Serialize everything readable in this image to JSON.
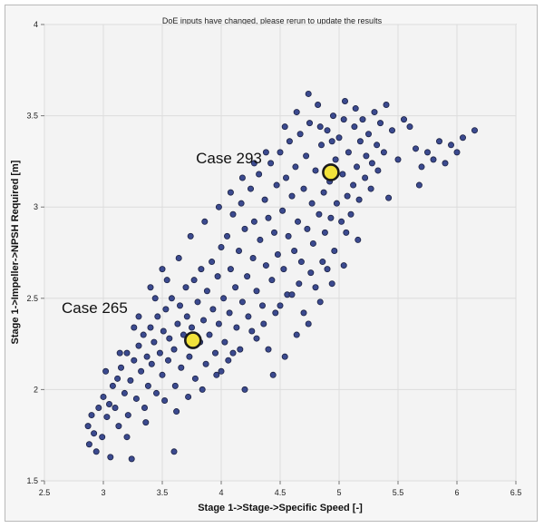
{
  "banner": {
    "message": "DoE inputs have changed, please rerun to update the results"
  },
  "chart_data": {
    "type": "scatter",
    "title": "",
    "xlabel": "Stage 1->Stage->Specific Speed [-]",
    "ylabel": "Stage 1->Impeller->NPSH Required [m]",
    "xlim": [
      2.5,
      6.5
    ],
    "ylim": [
      1.5,
      4
    ],
    "xticks": [
      "2.5",
      "3",
      "3.5",
      "4",
      "4.5",
      "5",
      "5.5",
      "6",
      "6.5"
    ],
    "yticks": [
      "1.5",
      "2",
      "2.5",
      "3",
      "3.5",
      "4"
    ],
    "grid": true,
    "colors": {
      "point": "#3b4a8f",
      "point_stroke": "#1c2244",
      "highlight": "#f2e23a",
      "highlight_stroke": "#1a1a1a"
    },
    "highlights": [
      {
        "label": "Case 293",
        "x": 4.93,
        "y": 3.19
      },
      {
        "label": "Case 265",
        "x": 3.76,
        "y": 2.27
      }
    ],
    "points": [
      [
        2.87,
        1.8
      ],
      [
        2.88,
        1.7
      ],
      [
        2.9,
        1.86
      ],
      [
        2.92,
        1.76
      ],
      [
        2.94,
        1.66
      ],
      [
        2.96,
        1.9
      ],
      [
        2.99,
        1.74
      ],
      [
        3.0,
        1.96
      ],
      [
        3.03,
        1.85
      ],
      [
        3.05,
        1.92
      ],
      [
        3.06,
        1.63
      ],
      [
        3.08,
        2.02
      ],
      [
        3.1,
        1.9
      ],
      [
        3.12,
        2.06
      ],
      [
        3.13,
        1.8
      ],
      [
        3.15,
        2.12
      ],
      [
        3.18,
        1.98
      ],
      [
        3.2,
        2.2
      ],
      [
        3.21,
        1.86
      ],
      [
        3.23,
        2.05
      ],
      [
        3.24,
        1.62
      ],
      [
        3.26,
        2.16
      ],
      [
        3.28,
        1.95
      ],
      [
        3.3,
        2.24
      ],
      [
        3.32,
        2.1
      ],
      [
        3.34,
        2.3
      ],
      [
        3.35,
        1.9
      ],
      [
        3.37,
        2.18
      ],
      [
        3.38,
        2.02
      ],
      [
        3.4,
        2.34
      ],
      [
        3.41,
        2.14
      ],
      [
        3.43,
        2.26
      ],
      [
        3.45,
        1.98
      ],
      [
        3.46,
        2.4
      ],
      [
        3.48,
        2.2
      ],
      [
        3.5,
        2.08
      ],
      [
        3.51,
        2.32
      ],
      [
        3.53,
        2.44
      ],
      [
        3.55,
        2.16
      ],
      [
        3.56,
        2.28
      ],
      [
        3.58,
        2.5
      ],
      [
        3.6,
        2.22
      ],
      [
        3.61,
        2.02
      ],
      [
        3.63,
        2.36
      ],
      [
        3.65,
        2.46
      ],
      [
        3.66,
        2.12
      ],
      [
        3.68,
        2.3
      ],
      [
        3.7,
        2.56
      ],
      [
        3.71,
        2.4
      ],
      [
        3.73,
        2.18
      ],
      [
        3.75,
        2.34
      ],
      [
        3.77,
        2.6
      ],
      [
        3.78,
        2.06
      ],
      [
        3.8,
        2.48
      ],
      [
        3.82,
        2.26
      ],
      [
        3.83,
        2.66
      ],
      [
        3.85,
        2.38
      ],
      [
        3.87,
        2.14
      ],
      [
        3.88,
        2.54
      ],
      [
        3.9,
        2.3
      ],
      [
        3.92,
        2.7
      ],
      [
        3.93,
        2.44
      ],
      [
        3.95,
        2.2
      ],
      [
        3.97,
        2.62
      ],
      [
        3.98,
        2.36
      ],
      [
        4.0,
        2.78
      ],
      [
        4.02,
        2.5
      ],
      [
        4.03,
        2.26
      ],
      [
        4.05,
        2.84
      ],
      [
        4.07,
        2.42
      ],
      [
        4.08,
        2.66
      ],
      [
        4.1,
        2.96
      ],
      [
        4.12,
        2.56
      ],
      [
        4.13,
        2.34
      ],
      [
        4.15,
        2.76
      ],
      [
        4.17,
        3.02
      ],
      [
        4.18,
        2.48
      ],
      [
        4.2,
        2.88
      ],
      [
        4.22,
        2.62
      ],
      [
        4.23,
        2.4
      ],
      [
        4.25,
        3.1
      ],
      [
        4.27,
        2.72
      ],
      [
        4.28,
        2.92
      ],
      [
        4.3,
        2.54
      ],
      [
        4.32,
        3.18
      ],
      [
        4.33,
        2.82
      ],
      [
        4.35,
        2.46
      ],
      [
        4.37,
        3.04
      ],
      [
        4.38,
        2.68
      ],
      [
        4.4,
        2.94
      ],
      [
        4.42,
        3.24
      ],
      [
        4.43,
        2.6
      ],
      [
        4.45,
        2.86
      ],
      [
        4.47,
        3.12
      ],
      [
        4.48,
        2.74
      ],
      [
        4.5,
        3.3
      ],
      [
        4.52,
        2.98
      ],
      [
        4.53,
        2.66
      ],
      [
        4.55,
        3.16
      ],
      [
        4.57,
        2.84
      ],
      [
        4.58,
        3.36
      ],
      [
        4.6,
        3.06
      ],
      [
        4.62,
        2.76
      ],
      [
        4.63,
        3.22
      ],
      [
        4.65,
        2.92
      ],
      [
        4.67,
        3.4
      ],
      [
        4.68,
        2.7
      ],
      [
        4.7,
        3.1
      ],
      [
        4.72,
        3.28
      ],
      [
        4.73,
        2.88
      ],
      [
        4.75,
        3.46
      ],
      [
        4.77,
        3.02
      ],
      [
        4.78,
        2.8
      ],
      [
        4.8,
        3.2
      ],
      [
        4.82,
        3.56
      ],
      [
        4.83,
        2.96
      ],
      [
        4.85,
        3.34
      ],
      [
        4.87,
        3.08
      ],
      [
        4.88,
        2.86
      ],
      [
        4.9,
        3.42
      ],
      [
        4.92,
        3.14
      ],
      [
        4.93,
        2.94
      ],
      [
        4.95,
        3.5
      ],
      [
        4.97,
        3.26
      ],
      [
        4.98,
        3.02
      ],
      [
        5.0,
        3.38
      ],
      [
        5.02,
        2.92
      ],
      [
        5.03,
        3.18
      ],
      [
        5.05,
        3.58
      ],
      [
        5.07,
        3.06
      ],
      [
        5.08,
        3.3
      ],
      [
        5.1,
        2.96
      ],
      [
        5.12,
        3.12
      ],
      [
        5.13,
        3.44
      ],
      [
        5.15,
        3.22
      ],
      [
        5.17,
        3.04
      ],
      [
        5.18,
        3.36
      ],
      [
        5.2,
        3.48
      ],
      [
        5.22,
        3.16
      ],
      [
        5.23,
        3.28
      ],
      [
        5.25,
        3.4
      ],
      [
        5.27,
        3.1
      ],
      [
        5.28,
        3.24
      ],
      [
        5.3,
        3.52
      ],
      [
        5.32,
        3.34
      ],
      [
        5.33,
        3.2
      ],
      [
        5.35,
        3.46
      ],
      [
        5.38,
        3.3
      ],
      [
        5.42,
        3.05
      ],
      [
        5.45,
        3.42
      ],
      [
        5.5,
        3.26
      ],
      [
        5.55,
        3.48
      ],
      [
        5.6,
        3.44
      ],
      [
        5.65,
        3.32
      ],
      [
        5.7,
        3.22
      ],
      [
        5.75,
        3.3
      ],
      [
        5.8,
        3.26
      ],
      [
        5.85,
        3.36
      ],
      [
        5.9,
        3.24
      ],
      [
        5.95,
        3.34
      ],
      [
        6.0,
        3.3
      ],
      [
        6.05,
        3.38
      ],
      [
        6.15,
        3.42
      ],
      [
        5.68,
        3.12
      ],
      [
        5.4,
        3.56
      ],
      [
        3.2,
        1.74
      ],
      [
        3.36,
        1.82
      ],
      [
        3.52,
        1.94
      ],
      [
        3.62,
        1.88
      ],
      [
        3.72,
        1.96
      ],
      [
        3.84,
        2.0
      ],
      [
        3.96,
        2.08
      ],
      [
        4.06,
        2.16
      ],
      [
        4.16,
        2.22
      ],
      [
        4.26,
        2.32
      ],
      [
        4.36,
        2.36
      ],
      [
        4.46,
        2.42
      ],
      [
        4.56,
        2.52
      ],
      [
        4.66,
        2.58
      ],
      [
        4.76,
        2.64
      ],
      [
        4.86,
        2.7
      ],
      [
        4.96,
        2.76
      ],
      [
        5.06,
        2.86
      ],
      [
        5.16,
        2.82
      ],
      [
        4.0,
        2.1
      ],
      [
        4.1,
        2.2
      ],
      [
        4.2,
        2.0
      ],
      [
        4.3,
        2.28
      ],
      [
        4.4,
        2.22
      ],
      [
        4.5,
        2.46
      ],
      [
        4.6,
        2.52
      ],
      [
        4.7,
        2.42
      ],
      [
        4.8,
        2.56
      ],
      [
        4.9,
        2.66
      ],
      [
        3.44,
        2.5
      ],
      [
        3.54,
        2.6
      ],
      [
        3.64,
        2.72
      ],
      [
        3.74,
        2.84
      ],
      [
        3.86,
        2.92
      ],
      [
        3.98,
        3.0
      ],
      [
        4.08,
        3.08
      ],
      [
        4.18,
        3.16
      ],
      [
        4.28,
        3.24
      ],
      [
        4.38,
        3.3
      ],
      [
        3.3,
        2.4
      ],
      [
        3.4,
        2.56
      ],
      [
        3.5,
        2.66
      ],
      [
        4.54,
        3.44
      ],
      [
        4.64,
        3.52
      ],
      [
        4.74,
        3.62
      ],
      [
        4.84,
        3.44
      ],
      [
        4.94,
        3.36
      ],
      [
        5.04,
        3.48
      ],
      [
        5.14,
        3.54
      ],
      [
        3.6,
        1.66
      ],
      [
        3.02,
        2.1
      ],
      [
        3.14,
        2.2
      ],
      [
        3.26,
        2.34
      ],
      [
        4.44,
        2.08
      ],
      [
        4.54,
        2.18
      ],
      [
        4.64,
        2.3
      ],
      [
        4.74,
        2.36
      ],
      [
        4.84,
        2.48
      ],
      [
        4.94,
        2.58
      ],
      [
        5.04,
        2.68
      ]
    ]
  }
}
